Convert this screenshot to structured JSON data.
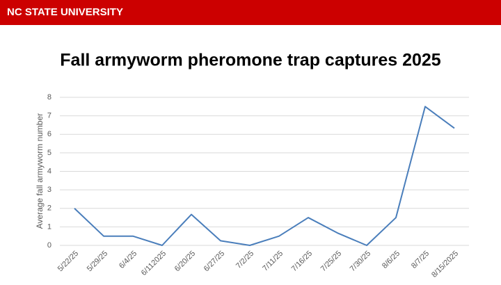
{
  "header": {
    "brand": "NC STATE UNIVERSITY"
  },
  "chart_data": {
    "type": "line",
    "title": "Fall armyworm pheromone trap captures 2025",
    "y_label": "Average fall armyworm number",
    "categories": [
      "5/22/25",
      "5/29/25",
      "6/4/25",
      "6/112025",
      "6/20/25",
      "6/27/25",
      "7/2/25",
      "7/11/25",
      "7/16/25",
      "7/25/25",
      "7/30/25",
      "8/6/25",
      "8/7/25",
      "8/15/2025"
    ],
    "values": [
      2.0,
      0.5,
      0.5,
      0,
      1.67,
      0.25,
      0,
      0.5,
      1.5,
      0.67,
      0,
      1.5,
      7.5,
      6.33
    ],
    "color": "#4a7ebb",
    "ylim": [
      0,
      8
    ],
    "yticks": [
      0,
      1,
      2,
      3,
      4,
      5,
      6,
      7,
      8
    ],
    "grid": true
  }
}
